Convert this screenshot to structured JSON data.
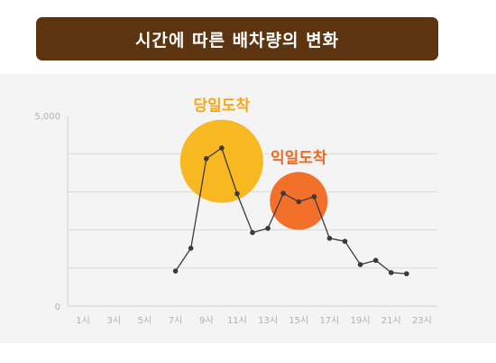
{
  "title": "시간에 따른 배차량의 변화",
  "chart_data": {
    "type": "line",
    "title": "시간에 따른 배차량의 변화",
    "xlabel": "",
    "ylabel": "",
    "ylim": [
      0,
      5000
    ],
    "y_ticks": [
      {
        "value": 0,
        "label": "0"
      },
      {
        "value": 5000,
        "label": "5,000"
      }
    ],
    "y_gridlines": [
      1000,
      2000,
      3000,
      4000
    ],
    "x_ticks": [
      "1시",
      "3시",
      "5시",
      "7시",
      "9시",
      "11시",
      "13시",
      "15시",
      "17시",
      "19시",
      "21시",
      "23시"
    ],
    "x_tick_hours": [
      1,
      3,
      5,
      7,
      9,
      11,
      13,
      15,
      17,
      19,
      21,
      23
    ],
    "x_range": [
      0,
      24
    ],
    "series": [
      {
        "x": [
          7,
          8,
          9,
          10,
          11,
          12,
          13,
          14,
          15,
          16,
          17,
          18,
          19,
          20,
          21,
          22
        ],
        "values": [
          920,
          1520,
          3870,
          4150,
          2950,
          1930,
          2040,
          2960,
          2740,
          2870,
          1780,
          1700,
          1090,
          1200,
          880,
          850
        ]
      }
    ],
    "annotations": [
      {
        "label": "당일도착",
        "color": "#f8b822",
        "text_color": "#f3a91b",
        "center_x": 10,
        "center_y": 3800
      },
      {
        "label": "익일도착",
        "color": "#f2702a",
        "text_color": "#ee6a24",
        "center_x": 15,
        "center_y": 2760
      }
    ],
    "line_color": "#3a3a3a",
    "grid": true
  }
}
